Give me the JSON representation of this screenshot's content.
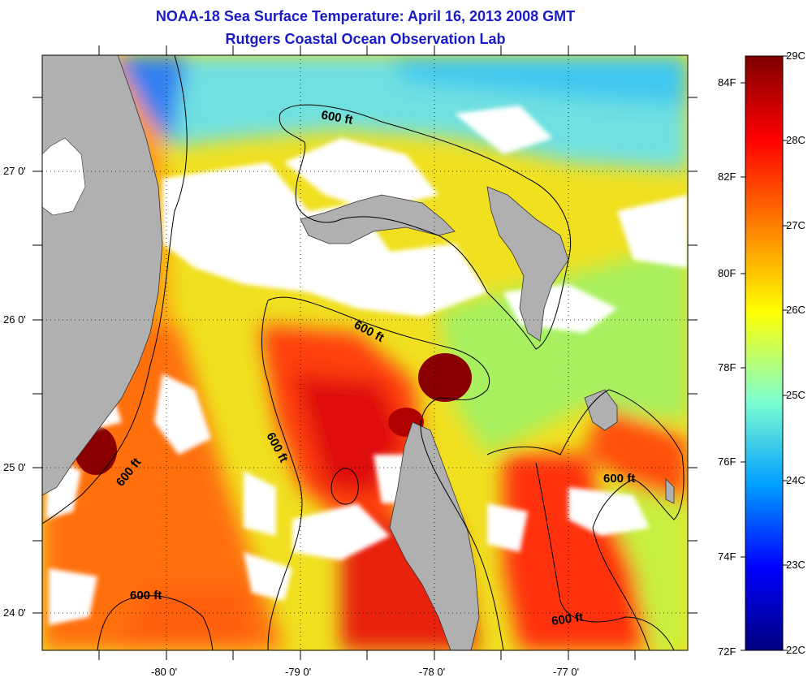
{
  "title_line1": "NOAA-18 Sea Surface Temperature:  April 16, 2013 2008 GMT",
  "title_line2": "Rutgers Coastal Ocean Observation Lab",
  "lat_ticks": [
    "27 0'",
    "26 0'",
    "25 0'",
    "24 0'"
  ],
  "lon_ticks": [
    "-80 0'",
    "-79 0'",
    "-78 0'",
    "-77 0'"
  ],
  "colorbar": {
    "celsius_labels": [
      "29C",
      "28C",
      "27C",
      "26C",
      "25C",
      "24C",
      "23C",
      "22C"
    ],
    "fahrenheit_labels": [
      "84F",
      "82F",
      "80F",
      "78F",
      "76F",
      "74F",
      "72F"
    ],
    "colors": [
      "#7f0000",
      "#ff0000",
      "#ff8c00",
      "#ffff00",
      "#7fffd0",
      "#00a0ff",
      "#0000ff",
      "#00007f"
    ]
  },
  "contour_labels": [
    "600 ft",
    "600 ft",
    "600 ft",
    "600 ft",
    "600 ft",
    "600 ft"
  ],
  "colors": {
    "land": "#b0b0b0",
    "cloud": "#ffffff",
    "title": "#1a1ac8"
  }
}
